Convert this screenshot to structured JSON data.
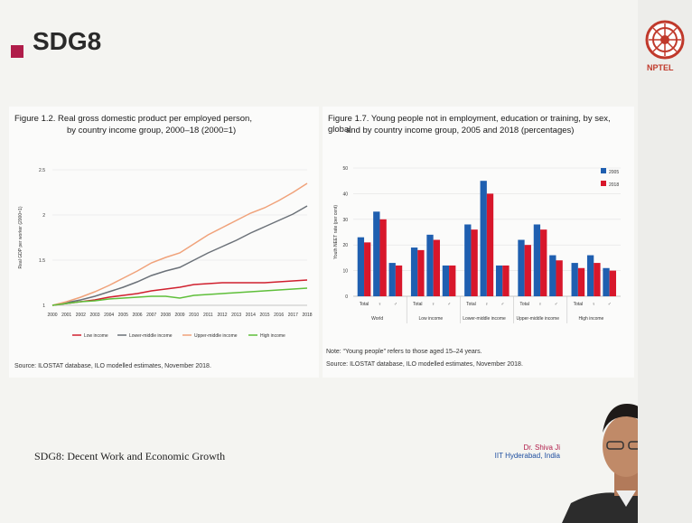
{
  "slide": {
    "title": "SDG8"
  },
  "footer": {
    "text": "SDG8: Decent Work and Economic Growth"
  },
  "presenter": {
    "name": "Dr. Shiva Ji",
    "institute": "IIT Hyderabad, India"
  },
  "logo": {
    "nptel_label": "NPTEL"
  },
  "colors": {
    "accent": "#b01d4a",
    "low": "#d0202e",
    "lower_middle": "#6b7178",
    "upper_middle": "#f0a27a",
    "high": "#5fbf3a",
    "y2005": "#1f5fb0",
    "y2018": "#d8172b"
  },
  "fig_left": {
    "title_line1": "Figure 1.2.  Real gross domestic product per employed person,",
    "title_line2": "by country income group, 2000–18 (2000=1)",
    "source": "Source: ILOSTAT database, ILO modelled estimates, November 2018."
  },
  "fig_right": {
    "title_line1": "Figure 1.7.  Young people not in employment, education or training, by sex, global",
    "title_line2": "and by country income group, 2005 and 2018 (percentages)",
    "note": "Note: “Young people” refers to those aged 15–24 years.",
    "source": "Source: ILOSTAT database, ILO modelled estimates, November 2018."
  },
  "chart_data": [
    {
      "type": "line",
      "title": "Real gross domestic product per employed person, by country income group, 2000–18 (2000=1)",
      "ylabel": "Real GDP per worker (2000=1)",
      "ylim": [
        1,
        2.5
      ],
      "yticks": [
        "1",
        "1.5",
        "2",
        "2.5"
      ],
      "x": [
        "2000",
        "2001",
        "2002",
        "2003",
        "2004",
        "2005",
        "2006",
        "2007",
        "2008",
        "2009",
        "2010",
        "2011",
        "2012",
        "2013",
        "2014",
        "2015",
        "2016",
        "2017",
        "2018"
      ],
      "series": [
        {
          "name": "Low income",
          "values": [
            1.0,
            1.02,
            1.04,
            1.06,
            1.09,
            1.11,
            1.13,
            1.16,
            1.18,
            1.2,
            1.23,
            1.24,
            1.25,
            1.25,
            1.25,
            1.25,
            1.26,
            1.27,
            1.28
          ]
        },
        {
          "name": "Lower-middle income",
          "values": [
            1.0,
            1.03,
            1.06,
            1.1,
            1.15,
            1.2,
            1.26,
            1.33,
            1.38,
            1.42,
            1.5,
            1.58,
            1.65,
            1.72,
            1.8,
            1.87,
            1.94,
            2.01,
            2.1
          ]
        },
        {
          "name": "Upper-middle income",
          "values": [
            1.0,
            1.04,
            1.09,
            1.15,
            1.22,
            1.3,
            1.38,
            1.47,
            1.53,
            1.58,
            1.68,
            1.78,
            1.86,
            1.94,
            2.02,
            2.08,
            2.16,
            2.25,
            2.35
          ]
        },
        {
          "name": "High income",
          "values": [
            1.0,
            1.02,
            1.04,
            1.05,
            1.07,
            1.08,
            1.09,
            1.1,
            1.1,
            1.08,
            1.11,
            1.12,
            1.13,
            1.14,
            1.15,
            1.16,
            1.17,
            1.18,
            1.19
          ]
        }
      ],
      "legend": "bottom",
      "grid": true
    },
    {
      "type": "bar",
      "title": "Young people not in employment, education or training, by sex, global and by country income group, 2005 and 2018 (percentages)",
      "ylabel": "Youth NEET rate (per cent)",
      "ylim": [
        0,
        50
      ],
      "yticks": [
        "0",
        "10",
        "20",
        "30",
        "40",
        "50"
      ],
      "groups": [
        "World",
        "Low income",
        "Lower-middle income",
        "Upper-middle income",
        "High income"
      ],
      "categories": [
        "Total",
        "♀",
        "♂",
        "Total",
        "♀",
        "♂",
        "Total",
        "♀",
        "♂",
        "Total",
        "♀",
        "♂",
        "Total",
        "♀",
        "♂"
      ],
      "series": [
        {
          "name": "2005",
          "values": [
            23,
            33,
            13,
            19,
            24,
            12,
            28,
            45,
            12,
            22,
            28,
            16,
            13,
            16,
            11
          ]
        },
        {
          "name": "2018",
          "values": [
            21,
            30,
            12,
            18,
            22,
            12,
            26,
            40,
            12,
            20,
            26,
            14,
            11,
            13,
            10
          ]
        }
      ],
      "legend": "top-right",
      "grid": true
    }
  ]
}
